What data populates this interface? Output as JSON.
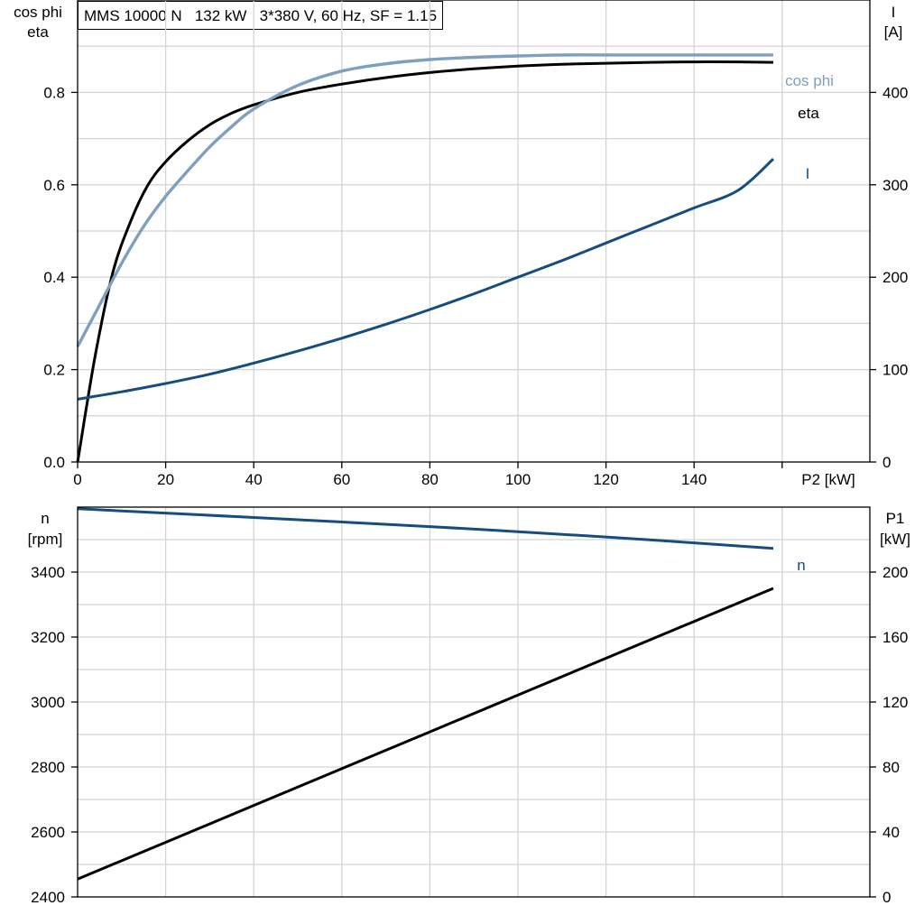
{
  "title": "MMS 10000 N   132 kW   3*380 V, 60 Hz, SF = 1.15",
  "colors": {
    "eta": "#000000",
    "cosphi": "#7f9fbf",
    "current": "#174c7e",
    "speed": "#174c7e",
    "p1": "#000000",
    "grid": "#d4d4d4"
  },
  "chart_data": [
    {
      "type": "line",
      "x_label": "P2 [kW]",
      "x_range": [
        0,
        160
      ],
      "x_ticks": [
        "0",
        "20",
        "40",
        "60",
        "80",
        "100",
        "120",
        "140"
      ],
      "y_left_label": [
        "cos phi",
        "eta"
      ],
      "y_left_range": [
        0,
        1.0
      ],
      "y_left_ticks": [
        "0.0",
        "0.2",
        "0.4",
        "0.6",
        "0.8"
      ],
      "y_right_label": [
        "I",
        "[A]"
      ],
      "y_right_range": [
        0,
        500
      ],
      "y_right_ticks": [
        "0",
        "100",
        "200",
        "300",
        "400"
      ],
      "grid": true,
      "series": [
        {
          "name": "eta",
          "axis": "left",
          "x": [
            0,
            4,
            8,
            12,
            16,
            20,
            25,
            30,
            35,
            40,
            50,
            60,
            70,
            80,
            90,
            100,
            110,
            120,
            130,
            140,
            150,
            158
          ],
          "y": [
            0,
            0.23,
            0.41,
            0.52,
            0.6,
            0.65,
            0.695,
            0.73,
            0.755,
            0.773,
            0.8,
            0.818,
            0.832,
            0.843,
            0.851,
            0.857,
            0.861,
            0.863,
            0.865,
            0.866,
            0.866,
            0.865
          ]
        },
        {
          "name": "cos phi",
          "axis": "left",
          "x": [
            0,
            5,
            10,
            15,
            20,
            25,
            30,
            35,
            40,
            50,
            60,
            70,
            80,
            90,
            100,
            110,
            120,
            130,
            140,
            150,
            158
          ],
          "y": [
            0.25,
            0.34,
            0.43,
            0.51,
            0.575,
            0.63,
            0.682,
            0.726,
            0.764,
            0.815,
            0.846,
            0.862,
            0.871,
            0.876,
            0.879,
            0.881,
            0.881,
            0.881,
            0.881,
            0.881,
            0.881
          ]
        },
        {
          "name": "I",
          "axis": "right",
          "x": [
            0,
            10,
            20,
            30,
            40,
            50,
            60,
            70,
            80,
            90,
            100,
            110,
            120,
            130,
            140,
            150,
            158
          ],
          "y": [
            68,
            76,
            85,
            95,
            107,
            120,
            134,
            149,
            165,
            182,
            200,
            218,
            237,
            256,
            275,
            294,
            328
          ]
        }
      ]
    },
    {
      "type": "line",
      "x_range": [
        0,
        160
      ],
      "y_left_label": [
        "n",
        "[rpm]"
      ],
      "y_left_range": [
        2400,
        3600
      ],
      "y_left_ticks": [
        "2400",
        "2600",
        "2800",
        "3000",
        "3200",
        "3400"
      ],
      "y_right_label": [
        "P1",
        "[kW]"
      ],
      "y_right_range": [
        0,
        240
      ],
      "y_right_ticks": [
        "0",
        "40",
        "80",
        "120",
        "160",
        "200"
      ],
      "grid": true,
      "series": [
        {
          "name": "n",
          "axis": "left",
          "x": [
            0,
            40,
            80,
            120,
            158
          ],
          "y": [
            3595,
            3568,
            3540,
            3508,
            3473
          ]
        },
        {
          "name": "",
          "axis": "right",
          "x": [
            0,
            158
          ],
          "y": [
            11,
            190
          ]
        }
      ]
    }
  ]
}
